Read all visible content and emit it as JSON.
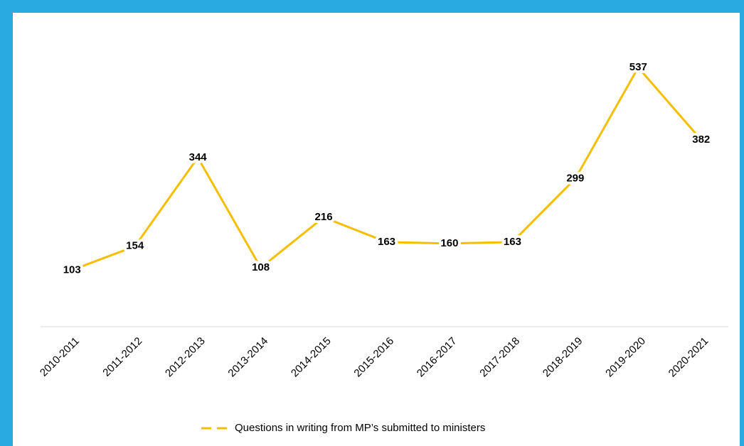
{
  "chart_data": {
    "type": "line",
    "categories": [
      "2010-2011",
      "2011-2012",
      "2012-2013",
      "2013-2014",
      "2014-2015",
      "2015-2016",
      "2016-2017",
      "2017-2018",
      "2018-2019",
      "2019-2020",
      "2020-2021"
    ],
    "series": [
      {
        "name": "Questions in writing from MP’s submitted to ministers",
        "color": "#f5be00",
        "values": [
          103,
          154,
          344,
          108,
          216,
          163,
          160,
          163,
          299,
          537,
          382
        ]
      }
    ],
    "legend": "bottom"
  }
}
